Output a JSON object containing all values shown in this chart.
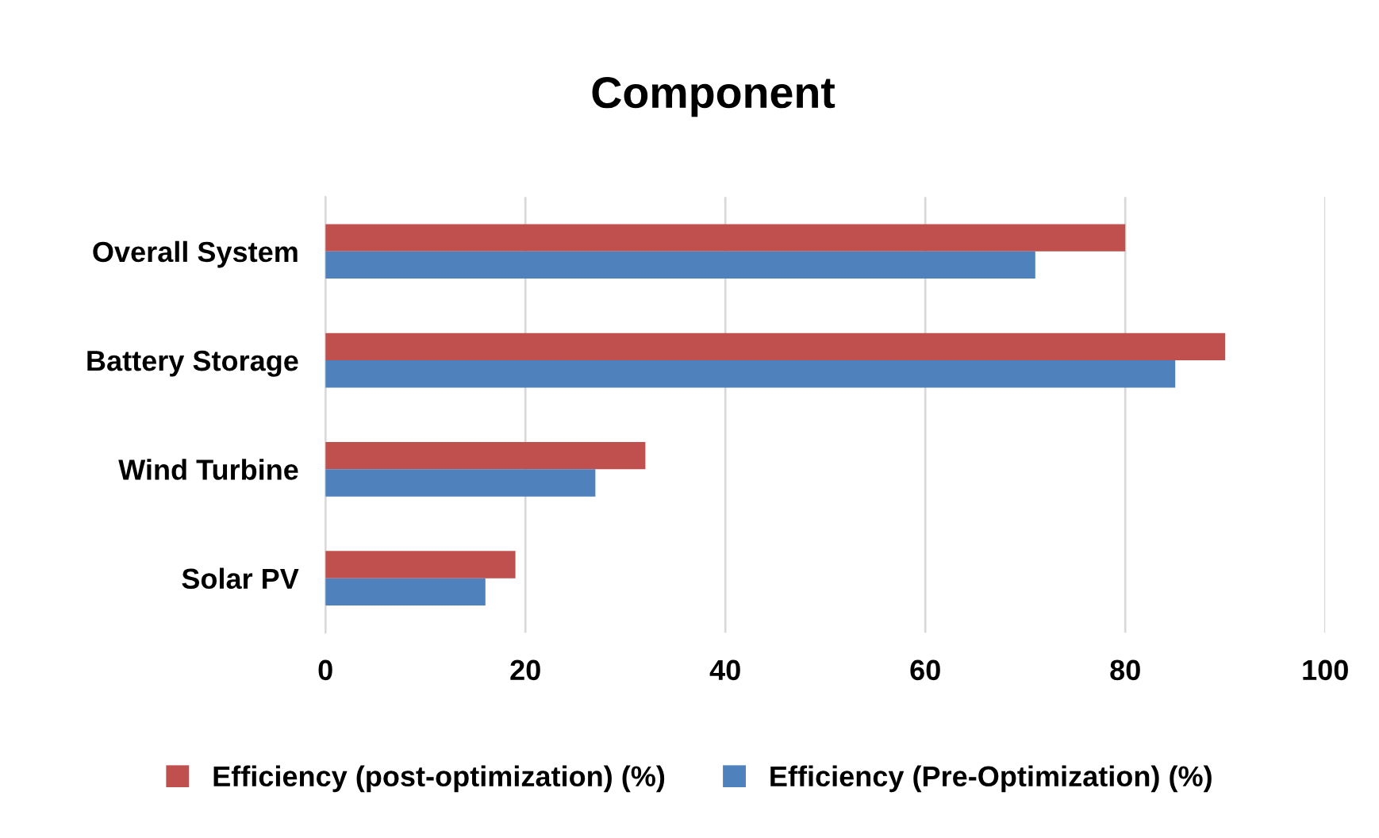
{
  "chart_data": {
    "type": "bar",
    "orientation": "horizontal",
    "title": "Component",
    "categories": [
      "Overall System",
      "Battery Storage",
      "Wind Turbine",
      "Solar PV"
    ],
    "series": [
      {
        "name": "Efficiency (post-optimization) (%)",
        "color": "#c0504d",
        "values": [
          80,
          90,
          32,
          19
        ]
      },
      {
        "name": "Efficiency (Pre-Optimization) (%)",
        "color": "#4f81bd",
        "values": [
          71,
          85,
          27,
          16
        ]
      }
    ],
    "xlim": [
      0,
      100
    ],
    "xticks": [
      0,
      20,
      40,
      60,
      80,
      100
    ],
    "grid": "x",
    "legend": "bottom"
  }
}
